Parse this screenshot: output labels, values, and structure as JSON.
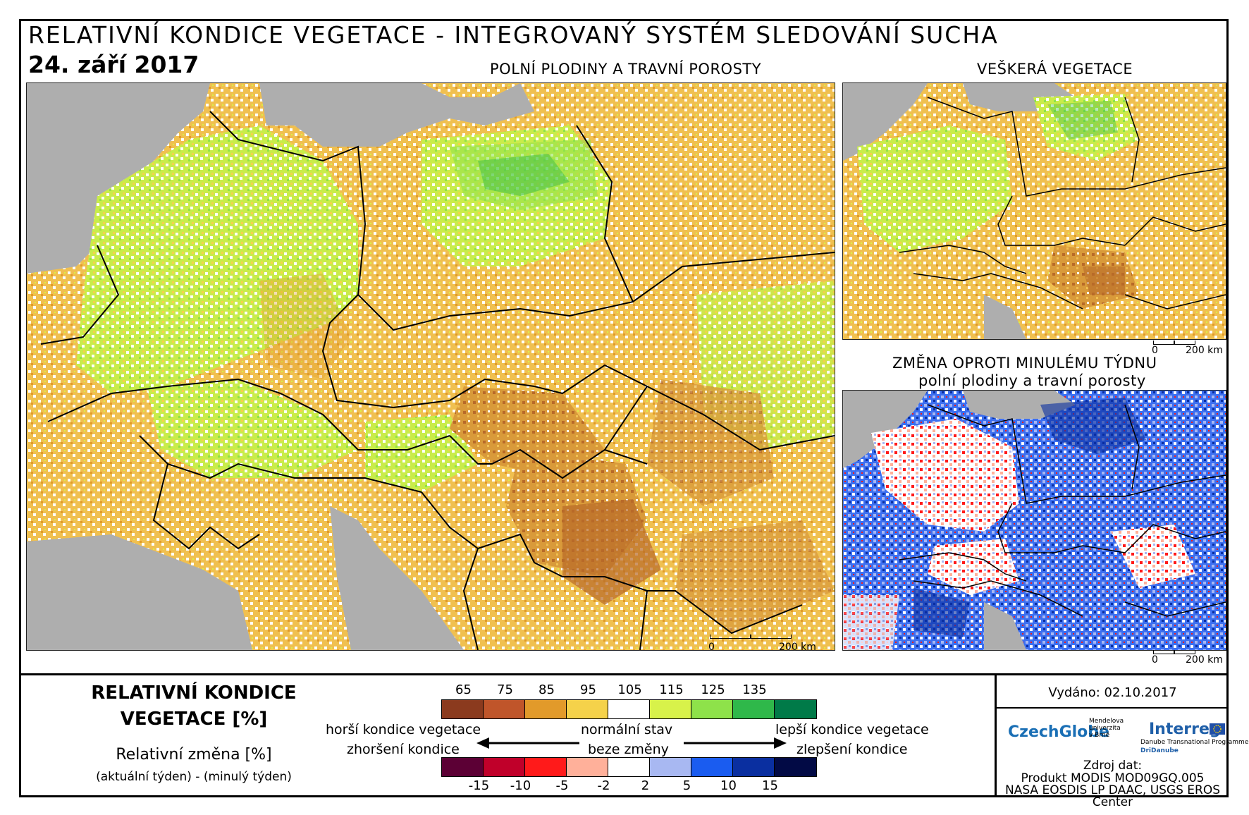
{
  "header": {
    "title": "RELATIVNÍ KONDICE VEGETACE - INTEGROVANÝ SYSTÉM SLEDOVÁNÍ SUCHA",
    "date": "24. září 2017"
  },
  "panels": {
    "main": {
      "title": "POLNÍ PLODINY A TRAVNÍ POROSTY"
    },
    "all_veg": {
      "title": "VEŠKERÁ VEGETACE"
    },
    "change": {
      "title_line1": "ZMĚNA OPROTI MINULÉMU TÝDNU",
      "title_line2": "polní plodiny a travní porosty"
    }
  },
  "scale_bar": {
    "zero": "0",
    "max": "200 km"
  },
  "legend": {
    "heading_line1": "RELATIVNÍ KONDICE",
    "heading_line2": "VEGETACE [%]",
    "change_heading": "Relativní změna [%]",
    "change_sub": "(aktuální týden) - (minulý týden)",
    "condition_ticks": [
      "65",
      "75",
      "85",
      "95",
      "105",
      "115",
      "125",
      "135"
    ],
    "condition_colors": [
      "#8b3a1e",
      "#c0552a",
      "#e29a2a",
      "#f5d24a",
      "#ffffff",
      "#d8f24a",
      "#8ee24a",
      "#2fb84a",
      "#007a48"
    ],
    "change_ticks": [
      "-15",
      "-10",
      "-5",
      "-2",
      "2",
      "5",
      "10",
      "15"
    ],
    "change_colors": [
      "#5c0035",
      "#c0002a",
      "#ff1a1a",
      "#ffb09a",
      "#ffffff",
      "#a8b8f2",
      "#1a5cf0",
      "#0a2fa0",
      "#020a45"
    ],
    "worse_condition": "horší kondice vegetace",
    "normal_state": "normální stav",
    "better_condition": "lepší kondice vegetace",
    "worsening": "zhoršení kondice",
    "no_change": "beze změny",
    "improvement": "zlepšení kondice"
  },
  "info": {
    "issued": "Vydáno: 02.10.2017",
    "source_label": "Zdroj dat:",
    "source_line1": "Produkt MODIS MOD09GQ.005",
    "source_line2": "NASA EOSDIS LP DAAC, USGS EROS Center",
    "logo_czechglobe": "CzechGlobe",
    "logo_mendel": "Mendelova univerzita v Brně",
    "logo_interreg": "Interreg",
    "logo_danube": "Danube Transnational Programme",
    "logo_dridanube": "DriDanube"
  },
  "colors": {
    "sea": "#aeaeae",
    "border": "#000000"
  }
}
